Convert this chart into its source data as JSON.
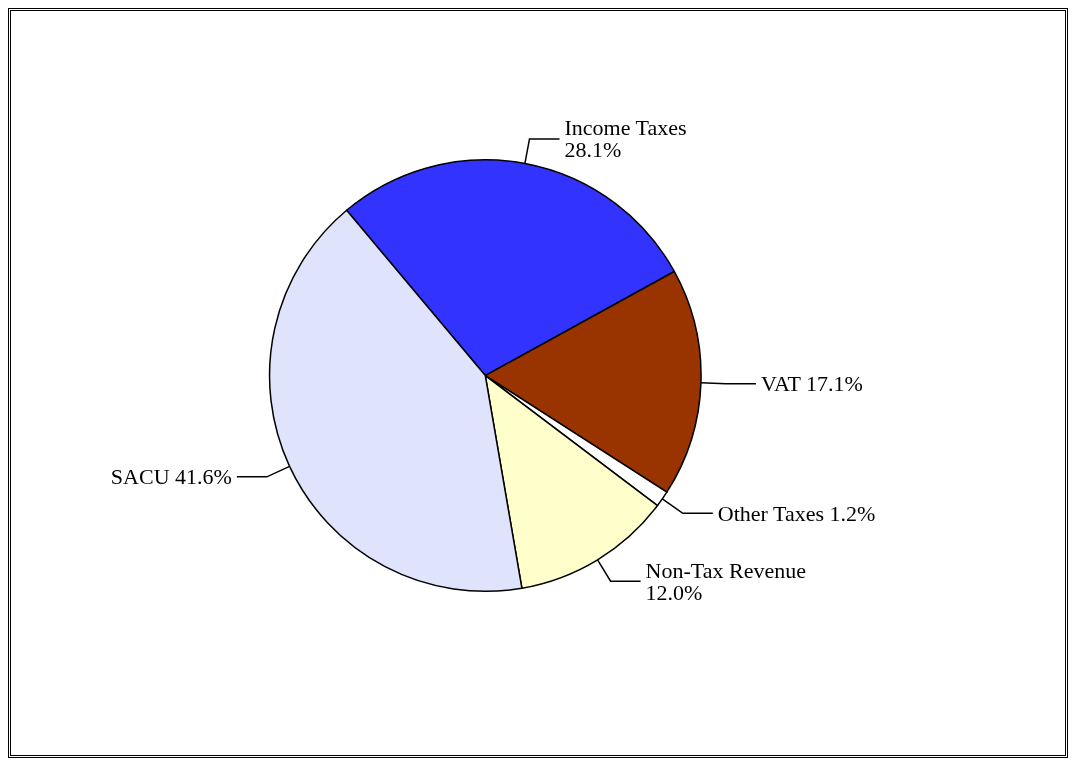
{
  "chart_data": {
    "type": "pie",
    "categories": [
      "Income Taxes",
      "VAT",
      "Other Taxes",
      "Non-Tax Revenue",
      "SACU"
    ],
    "values": [
      28.1,
      17.1,
      1.2,
      12.0,
      41.6
    ],
    "value_labels": [
      "28.1%",
      "17.1%",
      "1.2%",
      "12.0%",
      "41.6%"
    ],
    "colors": [
      "#3333ff",
      "#993300",
      "#ffffff",
      "#ffffcc",
      "#dfe3fb"
    ]
  }
}
